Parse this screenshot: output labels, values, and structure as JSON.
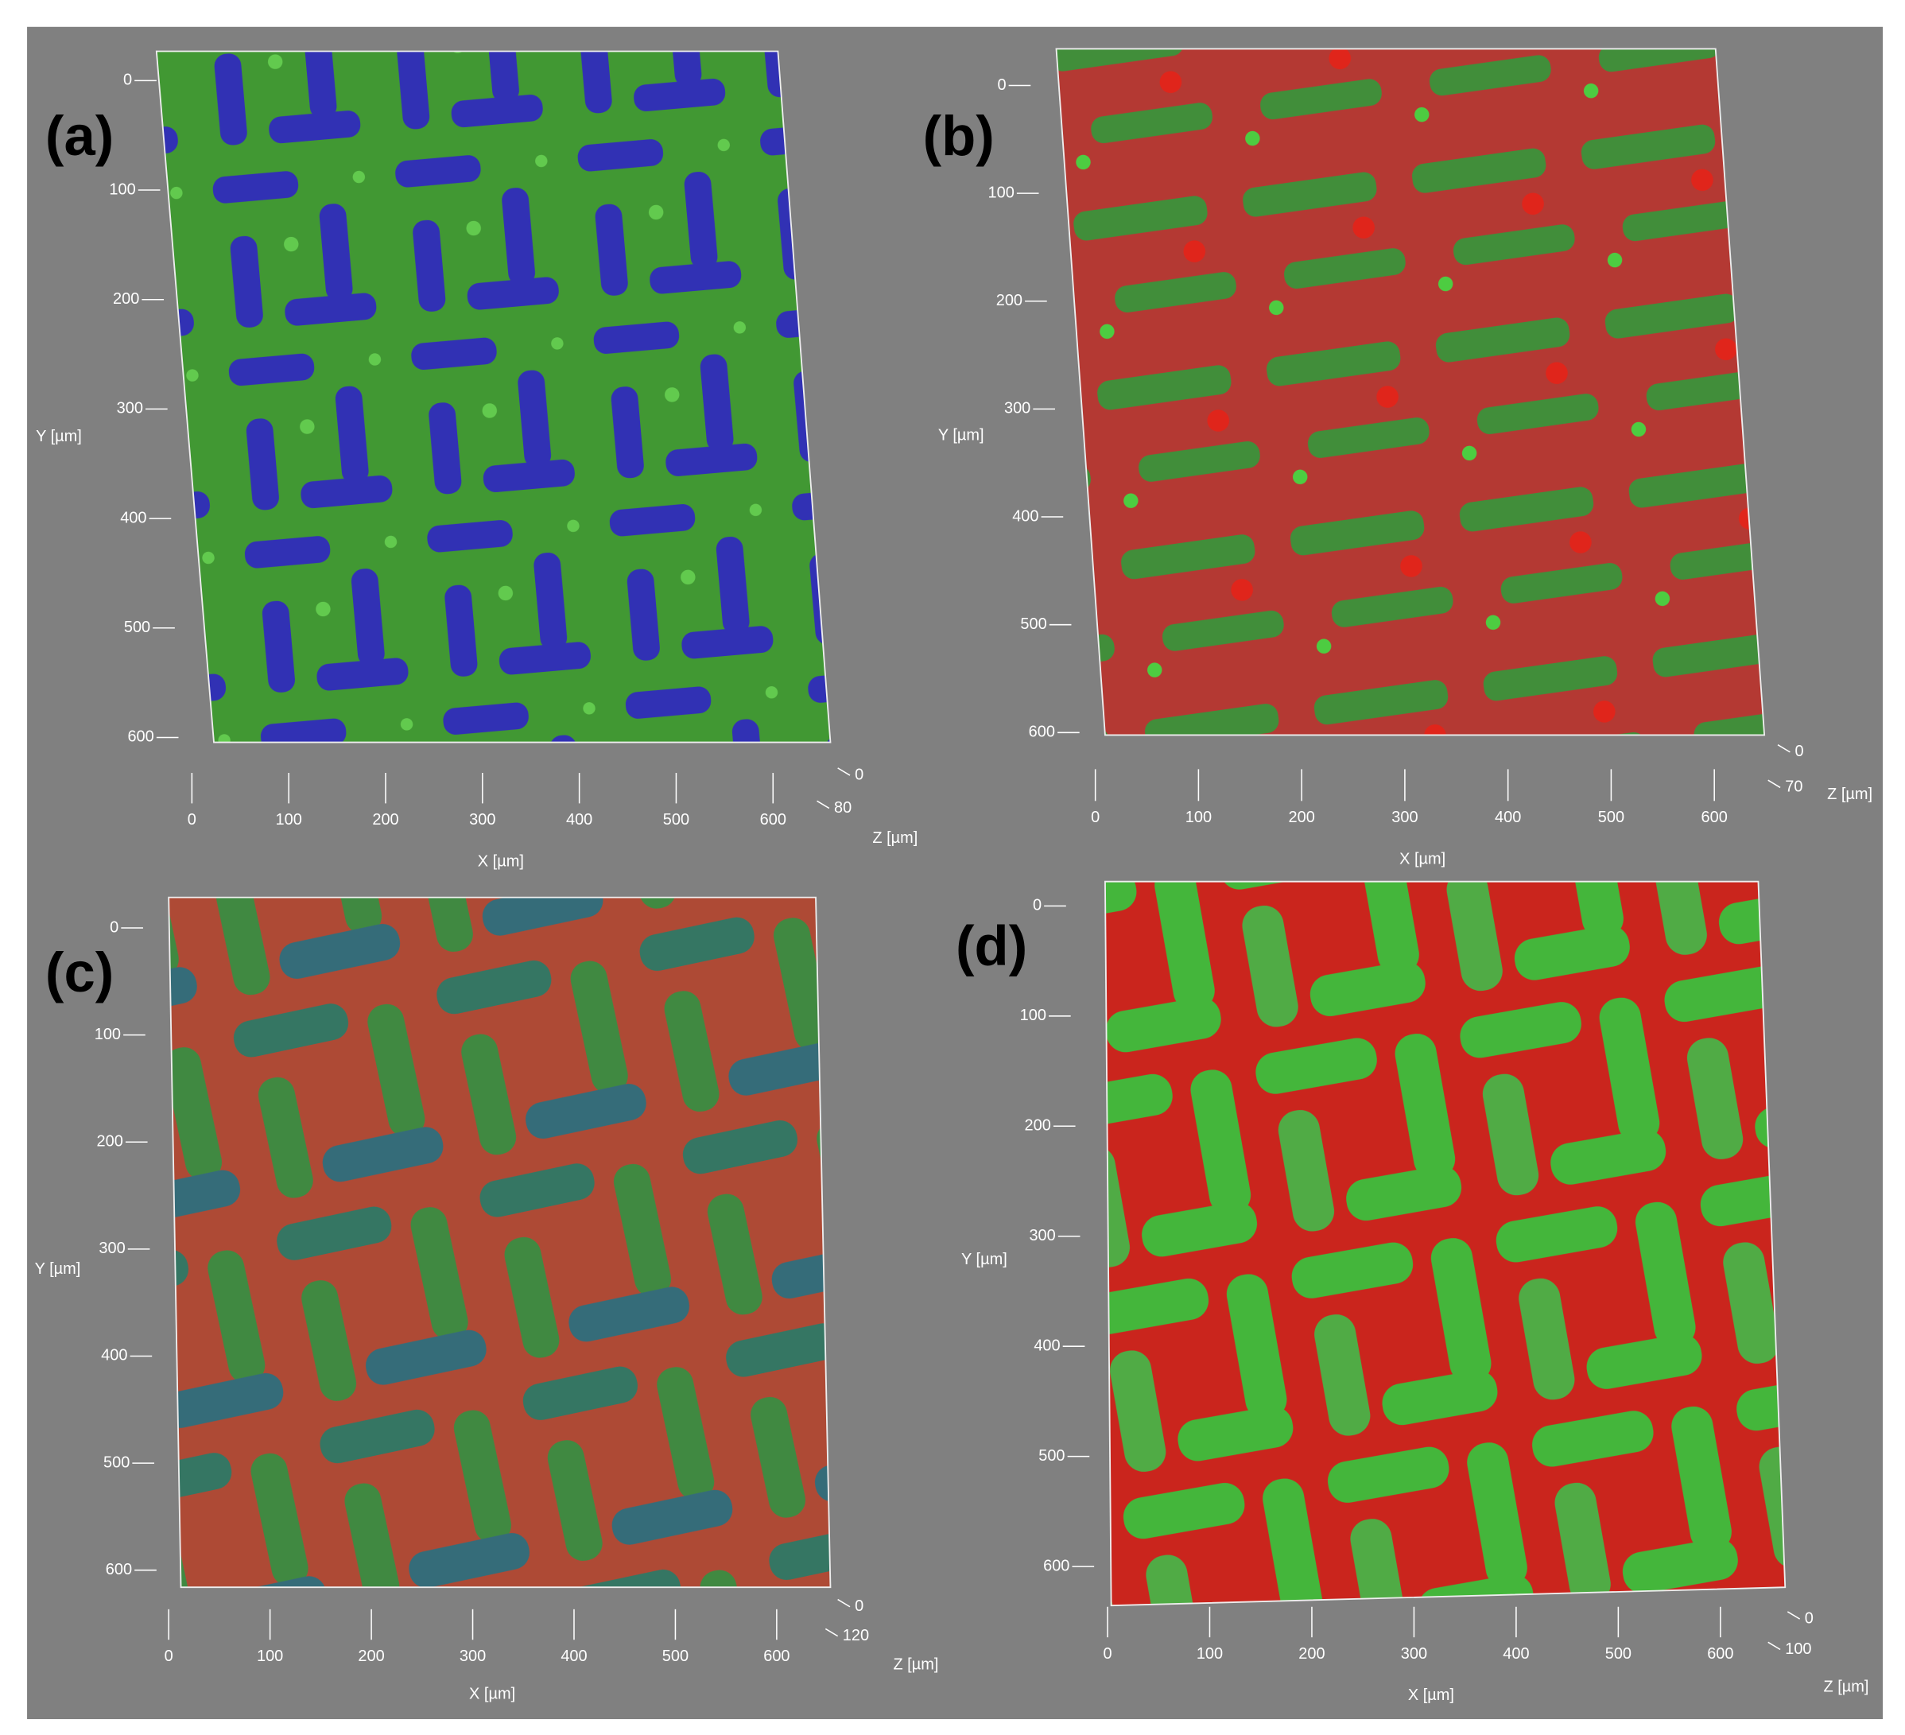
{
  "panels": [
    {
      "label": "(a)",
      "y_ticks": [
        0,
        100,
        200,
        300,
        400,
        500,
        600
      ],
      "x_ticks": [
        0,
        100,
        200,
        300,
        400,
        500,
        600
      ],
      "z_ticks": [
        0,
        80
      ],
      "x_axis": "X [µm]",
      "y_axis": "Y [µm]",
      "z_axis": "Z [µm]"
    },
    {
      "label": "(b)",
      "y_ticks": [
        0,
        100,
        200,
        300,
        400,
        500,
        600
      ],
      "x_ticks": [
        0,
        100,
        200,
        300,
        400,
        500,
        600
      ],
      "z_ticks": [
        0,
        70
      ],
      "x_axis": "X [µm]",
      "y_axis": "Y [µm]",
      "z_axis": "Z [µm]"
    },
    {
      "label": "(c)",
      "y_ticks": [
        0,
        100,
        200,
        300,
        400,
        500,
        600
      ],
      "x_ticks": [
        0,
        100,
        200,
        300,
        400,
        500,
        600
      ],
      "z_ticks": [
        0,
        120
      ],
      "x_axis": "X [µm]",
      "y_axis": "Y [µm]",
      "z_axis": "Z [µm]"
    },
    {
      "label": "(d)",
      "y_ticks": [
        0,
        100,
        200,
        300,
        400,
        500,
        600
      ],
      "x_ticks": [
        0,
        100,
        200,
        300,
        400,
        500,
        600
      ],
      "z_ticks": [
        0,
        100
      ],
      "x_axis": "X [µm]",
      "y_axis": "Y [µm]",
      "z_axis": "Z [µm]"
    }
  ]
}
